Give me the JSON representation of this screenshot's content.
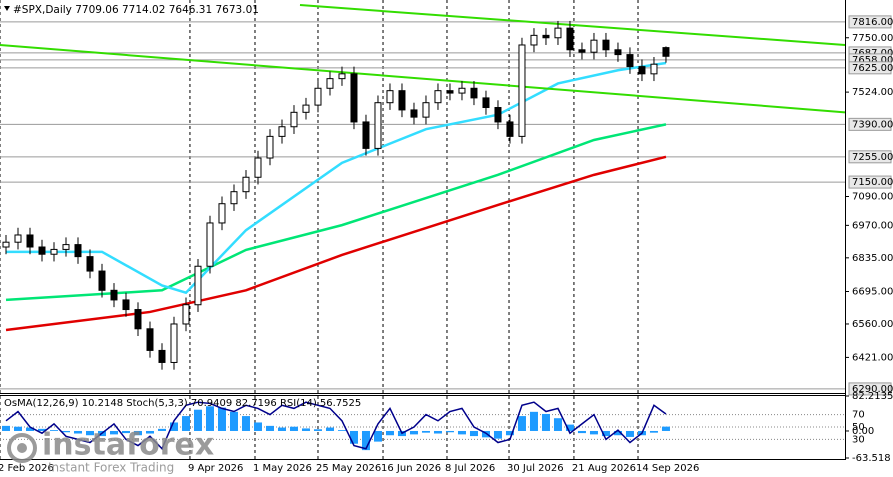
{
  "chart_data": [
    {
      "type": "candlestick",
      "title": "#SPX,Daily  7709.06 7714.02 7646.31 7673.01",
      "xlim": [
        -0.5,
        69.92
      ],
      "xticks": [
        {
          "value": -0.5,
          "label": "2 Feb 2026"
        },
        {
          "value": 15.33,
          "label": "9 Apr 2026"
        },
        {
          "value": 20.75,
          "label": "1 May 2026"
        },
        {
          "value": 26,
          "label": "25 May 2026"
        },
        {
          "value": 31.42,
          "label": "16 Jun 2026"
        },
        {
          "value": 36.75,
          "label": "8 Jul 2026"
        },
        {
          "value": 41.92,
          "label": "30 Jul 2026"
        },
        {
          "value": 47.33,
          "label": "21 Aug 2026"
        },
        {
          "value": 52.67,
          "label": "14 Sep 2026"
        }
      ],
      "ylim": [
        6273,
        7907
      ],
      "yticks": [
        {
          "value": 7750,
          "label": "7750.00"
        },
        {
          "value": 7524,
          "label": "7524.00"
        },
        {
          "value": 7090,
          "label": "7090.00"
        },
        {
          "value": 6970,
          "label": "6970.00"
        },
        {
          "value": 6835,
          "label": "6835.00"
        },
        {
          "value": 6695,
          "label": "6695.00"
        },
        {
          "value": 6560,
          "label": "6560.00"
        },
        {
          "value": 6421,
          "label": "6421.00"
        }
      ],
      "levels": [
        {
          "value": 7816,
          "label": "7816.00"
        },
        {
          "value": 7687,
          "label": "7687.00"
        },
        {
          "value": 7658,
          "label": "7658.00"
        },
        {
          "value": 7625,
          "label": "7625.00"
        },
        {
          "value": 7390,
          "label": "7390.00"
        },
        {
          "value": 7255,
          "label": "7255.00"
        },
        {
          "value": 7150,
          "label": "7150.00"
        },
        {
          "value": 6290,
          "label": "6290.00"
        }
      ],
      "level_color": "#9a9a9a",
      "candles": {
        "open": [
          6880,
          6900,
          6930,
          6880,
          6850,
          6870,
          6890,
          6840,
          6780,
          6700,
          6660,
          6620,
          6540,
          6450,
          6400,
          6560,
          6640,
          6800,
          6980,
          7060,
          7110,
          7170,
          7250,
          7340,
          7380,
          7440,
          7470,
          7540,
          7580,
          7600,
          7400,
          7290,
          7480,
          7530,
          7450,
          7420,
          7480,
          7530,
          7520,
          7540,
          7500,
          7460,
          7400,
          7340,
          7720,
          7760,
          7750,
          7790,
          7700,
          7690,
          7740,
          7700,
          7680,
          7630,
          7600,
          7709.06
        ],
        "high": [
          6930,
          6960,
          6960,
          6910,
          6900,
          6920,
          6920,
          6870,
          6810,
          6730,
          6690,
          6650,
          6570,
          6480,
          6590,
          6670,
          6830,
          7010,
          7090,
          7140,
          7200,
          7280,
          7370,
          7410,
          7470,
          7500,
          7570,
          7610,
          7630,
          7630,
          7430,
          7510,
          7560,
          7560,
          7480,
          7510,
          7560,
          7560,
          7570,
          7570,
          7530,
          7490,
          7430,
          7750,
          7790,
          7790,
          7820,
          7820,
          7730,
          7770,
          7770,
          7730,
          7710,
          7660,
          7670,
          7714.02
        ],
        "low": [
          6850,
          6870,
          6850,
          6820,
          6820,
          6840,
          6810,
          6750,
          6670,
          6630,
          6590,
          6510,
          6420,
          6370,
          6370,
          6530,
          6610,
          6770,
          6950,
          7030,
          7080,
          7140,
          7220,
          7310,
          7350,
          7410,
          7440,
          7510,
          7550,
          7370,
          7260,
          7260,
          7450,
          7420,
          7390,
          7390,
          7450,
          7490,
          7490,
          7470,
          7430,
          7370,
          7310,
          7310,
          7690,
          7720,
          7720,
          7670,
          7660,
          7660,
          7670,
          7650,
          7600,
          7570,
          7570,
          7646.31
        ],
        "close": [
          6900,
          6930,
          6880,
          6850,
          6870,
          6890,
          6840,
          6780,
          6700,
          6660,
          6620,
          6540,
          6450,
          6400,
          6560,
          6640,
          6800,
          6980,
          7060,
          7110,
          7170,
          7250,
          7340,
          7380,
          7440,
          7470,
          7540,
          7580,
          7600,
          7400,
          7290,
          7480,
          7530,
          7450,
          7420,
          7480,
          7530,
          7520,
          7540,
          7500,
          7460,
          7400,
          7340,
          7720,
          7760,
          7750,
          7790,
          7700,
          7690,
          7740,
          7700,
          7680,
          7630,
          7600,
          7640,
          7673.01
        ],
        "color": "#000000"
      },
      "moving_averages": [
        {
          "color": "#e00000",
          "x": [
            0,
            12,
            20,
            28,
            41,
            49,
            55
          ],
          "values": [
            6535,
            6610,
            6700,
            6847,
            7055,
            7180,
            7255
          ]
        },
        {
          "color": "#00e676",
          "x": [
            0,
            13,
            20,
            28,
            41,
            49,
            55
          ],
          "values": [
            6660,
            6700,
            6868,
            6971,
            7180,
            7325,
            7390
          ]
        },
        {
          "color": "#33ddff",
          "x": [
            0,
            8,
            13,
            15,
            20,
            28,
            35,
            41,
            46,
            51,
            55
          ],
          "values": [
            6860,
            6860,
            6720,
            6690,
            6950,
            7230,
            7370,
            7430,
            7560,
            7615,
            7645
          ]
        }
      ],
      "trendlines": [
        {
          "color": "#33dd00",
          "x": [
            24.5,
            69.92
          ],
          "values": [
            7886,
            7720
          ]
        },
        {
          "color": "#33dd00",
          "x": [
            -0.5,
            69.92
          ],
          "values": [
            7720,
            7440
          ]
        }
      ],
      "grid": true
    },
    {
      "type": "oscillator",
      "title": "OsMA(12,26,9) 10.2148  Stoch(5,3,3) 70.9409 82.7196  RSI(14) 56.7525",
      "ylim": [
        -63.518,
        82.2135
      ],
      "yticks": [
        82.2135,
        {
          "value": 0,
          "label": "0.00"
        },
        -63.518
      ],
      "y2lim": [
        0,
        100
      ],
      "y2ticks": [
        70,
        50,
        30
      ],
      "histogram": {
        "color": "#1e9bff",
        "values": [
          12,
          10,
          8,
          5,
          2,
          -3,
          -6,
          -10,
          -12,
          -8,
          -5,
          -10,
          -6,
          5,
          20,
          35,
          50,
          58,
          55,
          45,
          35,
          20,
          12,
          8,
          10,
          6,
          4,
          8,
          2,
          -30,
          -45,
          -25,
          -10,
          -12,
          -8,
          -4,
          -6,
          -3,
          -8,
          -12,
          -15,
          -18,
          -10,
          35,
          45,
          40,
          30,
          15,
          -5,
          -8,
          -12,
          -10,
          -14,
          -10,
          -4,
          10.2148
        ]
      },
      "stoch": {
        "color": "#00008b",
        "axis": "y2",
        "values": [
          60,
          75,
          50,
          40,
          55,
          35,
          30,
          25,
          40,
          55,
          30,
          20,
          35,
          15,
          60,
          85,
          90,
          88,
          80,
          75,
          85,
          80,
          70,
          85,
          80,
          90,
          85,
          80,
          60,
          20,
          15,
          55,
          80,
          40,
          50,
          70,
          60,
          75,
          80,
          50,
          40,
          25,
          30,
          85,
          90,
          75,
          80,
          40,
          55,
          70,
          30,
          45,
          25,
          40,
          85,
          70.9409
        ]
      }
    }
  ],
  "watermark": {
    "brand": "instaforex",
    "tagline": "Instant Forex Trading"
  }
}
